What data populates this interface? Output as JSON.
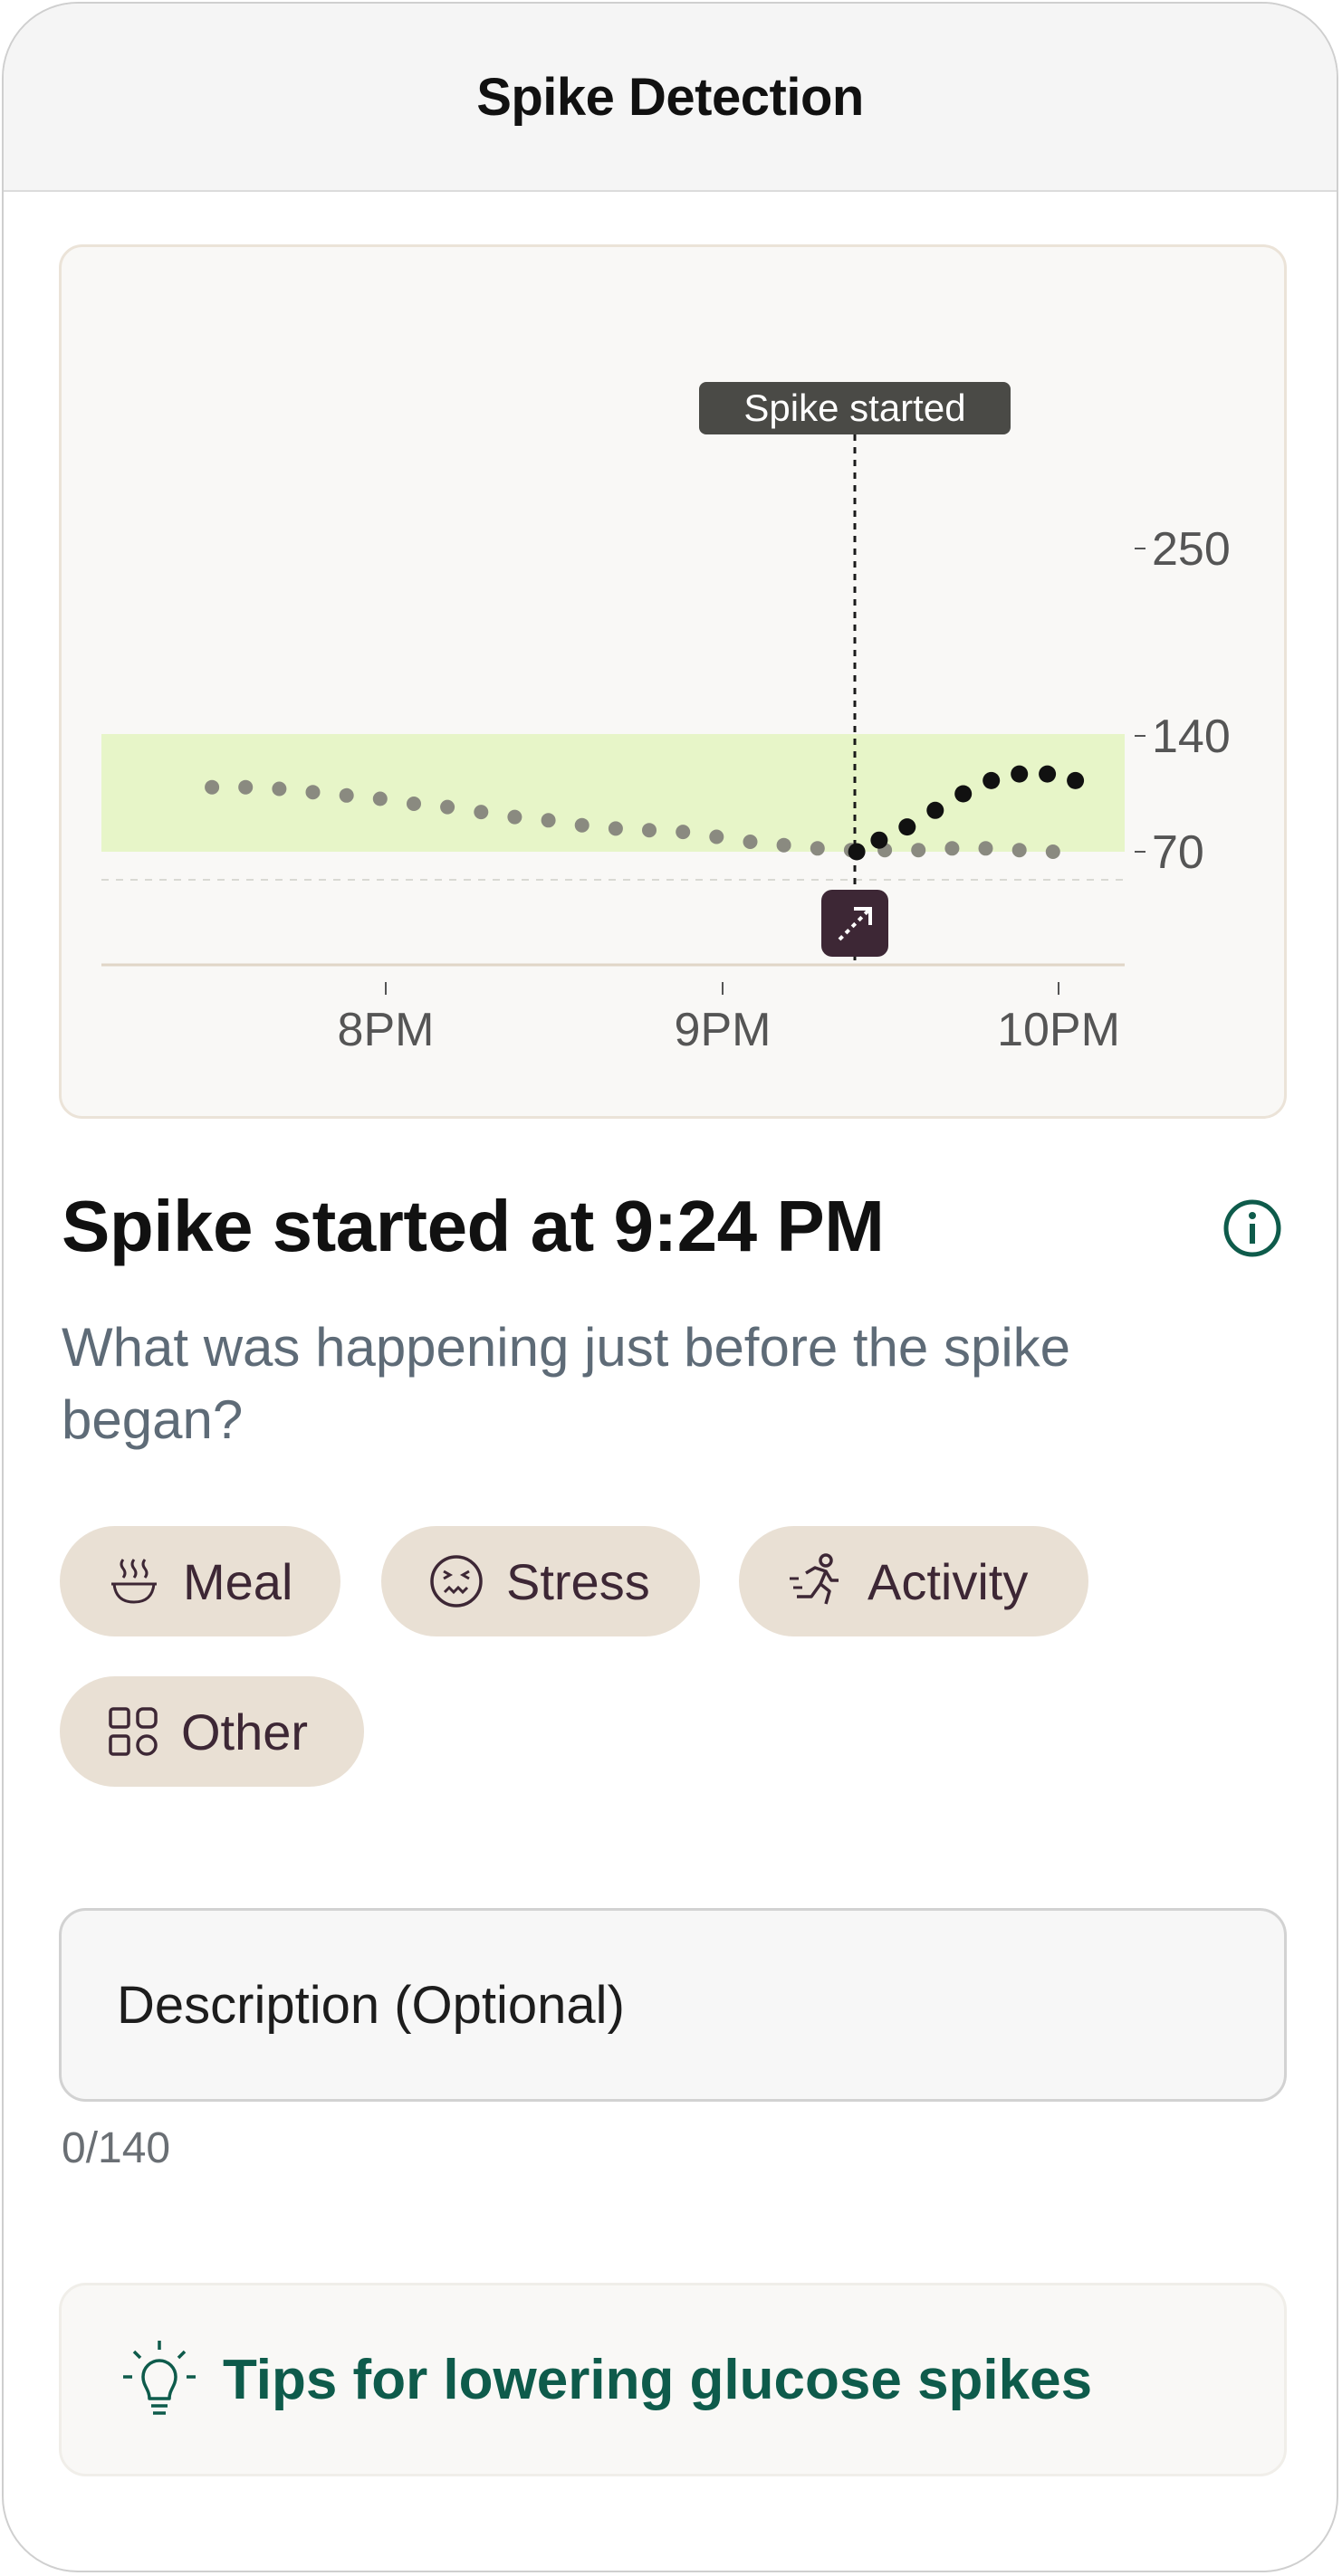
{
  "header": {
    "title": "Spike Detection"
  },
  "chart": {
    "marker_label": "Spike started",
    "y_ticks": [
      "250",
      "140",
      "70"
    ],
    "x_ticks": [
      "8PM",
      "9PM",
      "10PM"
    ]
  },
  "chart_data": {
    "type": "scatter",
    "x_axis": "time",
    "x_ticks": [
      "8PM",
      "9PM",
      "10PM"
    ],
    "y_ticks": [
      250,
      140,
      70
    ],
    "target_range": [
      70,
      140
    ],
    "marker": {
      "time": "9:24PM",
      "label": "Spike started"
    },
    "series": [
      {
        "name": "",
        "color": "#8a8a80",
        "points": [
          [
            "7:29PM",
            109
          ],
          [
            "7:35PM",
            109
          ],
          [
            "7:41PM",
            108
          ],
          [
            "7:47PM",
            106
          ],
          [
            "7:53PM",
            104
          ],
          [
            "7:59PM",
            102
          ],
          [
            "8:05PM",
            99
          ],
          [
            "8:11PM",
            97
          ],
          [
            "8:17PM",
            94
          ],
          [
            "8:23PM",
            91
          ],
          [
            "8:29PM",
            89
          ],
          [
            "8:35PM",
            86
          ],
          [
            "8:41PM",
            84
          ],
          [
            "8:47PM",
            83
          ],
          [
            "8:53PM",
            82
          ],
          [
            "8:59PM",
            79
          ],
          [
            "9:05PM",
            76
          ],
          [
            "9:11PM",
            74
          ],
          [
            "9:17PM",
            72
          ],
          [
            "9:23PM",
            71
          ],
          [
            "9:29PM",
            71
          ],
          [
            "9:35PM",
            71
          ],
          [
            "9:41PM",
            72
          ],
          [
            "9:47PM",
            72
          ],
          [
            "9:53PM",
            71
          ],
          [
            "9:59PM",
            70
          ]
        ]
      },
      {
        "name": "",
        "color": "#111111",
        "points": [
          [
            "9:24PM",
            70
          ],
          [
            "9:28PM",
            77
          ],
          [
            "9:33PM",
            85
          ],
          [
            "9:38PM",
            95
          ],
          [
            "9:43PM",
            105
          ],
          [
            "9:48PM",
            113
          ],
          [
            "9:53PM",
            117
          ],
          [
            "9:58PM",
            117
          ],
          [
            "10:03PM",
            113
          ]
        ]
      }
    ]
  },
  "main": {
    "headline": "Spike started at 9:24 PM",
    "question": "What was happening just before the spike began?",
    "chips": [
      {
        "label": "Meal",
        "icon": "bowl-icon"
      },
      {
        "label": "Stress",
        "icon": "stressed-face-icon"
      },
      {
        "label": "Activity",
        "icon": "running-person-icon"
      },
      {
        "label": "Other",
        "icon": "grid-shapes-icon"
      }
    ],
    "description": {
      "placeholder": "Description (Optional)",
      "counter": "0/140"
    },
    "tips": {
      "label": "Tips for lowering glucose spikes",
      "icon": "lightbulb-icon"
    }
  },
  "colors": {
    "accent": "#0e5b4b",
    "range_band": "#e7f5c8",
    "chip_bg": "#e9e0d4",
    "marker_badge": "#3d2735",
    "tooltip_bg": "#4a4a46"
  }
}
